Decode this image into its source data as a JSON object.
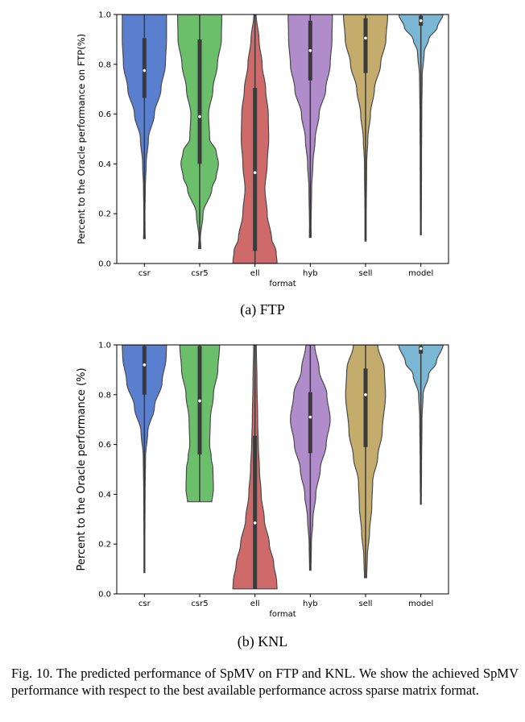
{
  "chart_data": [
    {
      "type": "violin",
      "subcaption": "(a)  FTP",
      "xlabel": "format",
      "ylabel": "Percent to the Oracle performance on FTP(%)",
      "ylim": [
        0.0,
        1.0
      ],
      "yticks": [
        "0.0",
        "0.2",
        "0.4",
        "0.6",
        "0.8",
        "1.0"
      ],
      "categories": [
        "csr",
        "csr5",
        "ell",
        "hyb",
        "sell",
        "model"
      ],
      "series": [
        {
          "color": "#5a7fcf",
          "min": 0.1,
          "q1": 0.665,
          "median": 0.775,
          "q3": 0.905,
          "max": 1.0,
          "density": [
            [
              0.1,
              0.04
            ],
            [
              0.12,
              0.03
            ],
            [
              0.2,
              0.025
            ],
            [
              0.3,
              0.04
            ],
            [
              0.4,
              0.08
            ],
            [
              0.5,
              0.18
            ],
            [
              0.6,
              0.45
            ],
            [
              0.7,
              0.75
            ],
            [
              0.8,
              0.95
            ],
            [
              0.9,
              1.0
            ],
            [
              1.0,
              1.0
            ]
          ]
        },
        {
          "color": "#6cbf6a",
          "min": 0.06,
          "q1": 0.4,
          "median": 0.59,
          "q3": 0.9,
          "max": 1.0,
          "density": [
            [
              0.06,
              0.05
            ],
            [
              0.1,
              0.03
            ],
            [
              0.2,
              0.15
            ],
            [
              0.3,
              0.55
            ],
            [
              0.35,
              0.75
            ],
            [
              0.4,
              0.85
            ],
            [
              0.45,
              0.75
            ],
            [
              0.5,
              0.45
            ],
            [
              0.6,
              0.4
            ],
            [
              0.7,
              0.6
            ],
            [
              0.8,
              0.8
            ],
            [
              0.9,
              0.98
            ],
            [
              1.0,
              1.0
            ]
          ]
        },
        {
          "color": "#cf6a6a",
          "min": 0.0,
          "q1": 0.05,
          "median": 0.365,
          "q3": 0.705,
          "max": 1.0,
          "density": [
            [
              0.0,
              1.0
            ],
            [
              0.05,
              0.95
            ],
            [
              0.1,
              0.75
            ],
            [
              0.2,
              0.55
            ],
            [
              0.3,
              0.45
            ],
            [
              0.4,
              0.55
            ],
            [
              0.5,
              0.62
            ],
            [
              0.6,
              0.6
            ],
            [
              0.7,
              0.48
            ],
            [
              0.8,
              0.32
            ],
            [
              0.9,
              0.18
            ],
            [
              1.0,
              0.05
            ]
          ]
        },
        {
          "color": "#b08ccb",
          "min": 0.105,
          "q1": 0.735,
          "median": 0.855,
          "q3": 0.975,
          "max": 1.0,
          "density": [
            [
              0.105,
              0.04
            ],
            [
              0.15,
              0.035
            ],
            [
              0.3,
              0.06
            ],
            [
              0.4,
              0.12
            ],
            [
              0.5,
              0.22
            ],
            [
              0.6,
              0.4
            ],
            [
              0.7,
              0.7
            ],
            [
              0.8,
              0.9
            ],
            [
              0.9,
              0.98
            ],
            [
              1.0,
              1.0
            ]
          ]
        },
        {
          "color": "#c4ac6c",
          "min": 0.09,
          "q1": 0.765,
          "median": 0.905,
          "q3": 0.985,
          "max": 1.0,
          "density": [
            [
              0.09,
              0.03
            ],
            [
              0.2,
              0.03
            ],
            [
              0.4,
              0.05
            ],
            [
              0.5,
              0.1
            ],
            [
              0.6,
              0.22
            ],
            [
              0.7,
              0.4
            ],
            [
              0.8,
              0.68
            ],
            [
              0.9,
              0.92
            ],
            [
              1.0,
              1.0
            ]
          ]
        },
        {
          "color": "#7ab7d4",
          "min": 0.115,
          "q1": 0.955,
          "median": 0.975,
          "q3": 0.995,
          "max": 1.0,
          "density": [
            [
              0.115,
              0.02
            ],
            [
              0.4,
              0.03
            ],
            [
              0.6,
              0.04
            ],
            [
              0.75,
              0.06
            ],
            [
              0.85,
              0.15
            ],
            [
              0.9,
              0.35
            ],
            [
              0.95,
              0.75
            ],
            [
              1.0,
              1.0
            ]
          ]
        }
      ]
    },
    {
      "type": "violin",
      "subcaption": "(b)  KNL",
      "xlabel": "format",
      "ylabel": "Percent to the Oracle performance (%)",
      "ylim": [
        0.0,
        1.0
      ],
      "yticks": [
        "0.0",
        "0.2",
        "0.4",
        "0.6",
        "0.8",
        "1.0"
      ],
      "categories": [
        "csr",
        "csr5",
        "ell",
        "hyb",
        "sell",
        "model"
      ],
      "series": [
        {
          "color": "#5a7fcf",
          "min": 0.085,
          "q1": 0.8,
          "median": 0.92,
          "q3": 0.995,
          "max": 1.0,
          "density": [
            [
              0.085,
              0.02
            ],
            [
              0.2,
              0.02
            ],
            [
              0.4,
              0.03
            ],
            [
              0.55,
              0.05
            ],
            [
              0.65,
              0.15
            ],
            [
              0.75,
              0.45
            ],
            [
              0.85,
              0.8
            ],
            [
              0.95,
              0.98
            ],
            [
              1.0,
              1.0
            ]
          ]
        },
        {
          "color": "#6cbf6a",
          "min": 0.37,
          "q1": 0.56,
          "median": 0.775,
          "q3": 0.995,
          "max": 1.0,
          "density": [
            [
              0.37,
              0.55
            ],
            [
              0.42,
              0.62
            ],
            [
              0.5,
              0.6
            ],
            [
              0.55,
              0.52
            ],
            [
              0.6,
              0.45
            ],
            [
              0.7,
              0.48
            ],
            [
              0.8,
              0.62
            ],
            [
              0.9,
              0.82
            ],
            [
              1.0,
              0.9
            ]
          ]
        },
        {
          "color": "#cf6a6a",
          "min": 0.02,
          "q1": 0.02,
          "median": 0.285,
          "q3": 0.635,
          "max": 1.0,
          "density": [
            [
              0.02,
              1.0
            ],
            [
              0.05,
              0.98
            ],
            [
              0.12,
              0.85
            ],
            [
              0.2,
              0.65
            ],
            [
              0.3,
              0.42
            ],
            [
              0.4,
              0.28
            ],
            [
              0.5,
              0.2
            ],
            [
              0.6,
              0.15
            ],
            [
              0.7,
              0.12
            ],
            [
              0.85,
              0.09
            ],
            [
              1.0,
              0.06
            ]
          ]
        },
        {
          "color": "#b08ccb",
          "min": 0.095,
          "q1": 0.565,
          "median": 0.71,
          "q3": 0.81,
          "max": 1.0,
          "density": [
            [
              0.095,
              0.03
            ],
            [
              0.2,
              0.05
            ],
            [
              0.3,
              0.12
            ],
            [
              0.4,
              0.25
            ],
            [
              0.5,
              0.45
            ],
            [
              0.6,
              0.72
            ],
            [
              0.7,
              0.9
            ],
            [
              0.8,
              0.75
            ],
            [
              0.9,
              0.4
            ],
            [
              1.0,
              0.2
            ]
          ]
        },
        {
          "color": "#c4ac6c",
          "min": 0.065,
          "q1": 0.59,
          "median": 0.8,
          "q3": 0.905,
          "max": 1.0,
          "density": [
            [
              0.065,
              0.05
            ],
            [
              0.15,
              0.08
            ],
            [
              0.25,
              0.18
            ],
            [
              0.35,
              0.28
            ],
            [
              0.45,
              0.32
            ],
            [
              0.55,
              0.55
            ],
            [
              0.65,
              0.75
            ],
            [
              0.8,
              0.9
            ],
            [
              0.9,
              0.85
            ],
            [
              1.0,
              0.55
            ]
          ]
        },
        {
          "color": "#7ab7d4",
          "min": 0.36,
          "q1": 0.965,
          "median": 0.985,
          "q3": 0.995,
          "max": 1.0,
          "density": [
            [
              0.36,
              0.02
            ],
            [
              0.5,
              0.03
            ],
            [
              0.7,
              0.05
            ],
            [
              0.8,
              0.1
            ],
            [
              0.88,
              0.35
            ],
            [
              0.93,
              0.7
            ],
            [
              1.0,
              1.0
            ]
          ]
        }
      ]
    }
  ],
  "caption": "Fig. 10.   The predicted performance of SpMV on FTP and KNL. We show the achieved SpMV performance with respect to the best available performance across sparse matrix format."
}
